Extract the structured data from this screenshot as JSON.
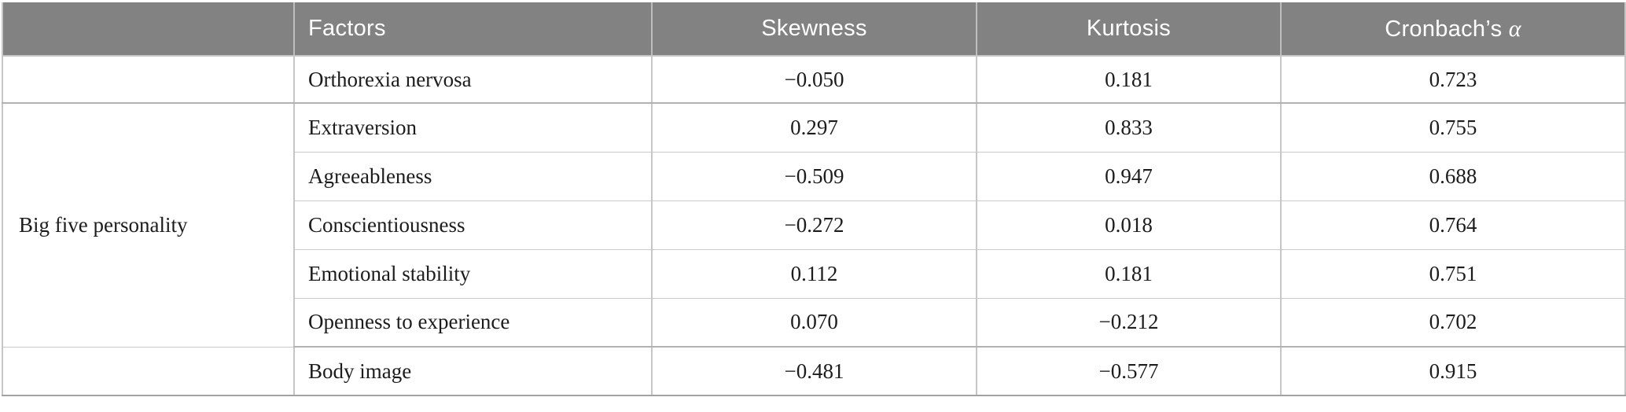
{
  "colors": {
    "header_bg": "#828282",
    "header_text": "#ffffff",
    "body_text": "#1c1c1c",
    "border_v": "#c6c6c6",
    "border_inner": "#cbcbcb",
    "border_group": "#b2b2b2",
    "border_bottom": "#a2a2a2",
    "page_bg": "#ffffff"
  },
  "table": {
    "header": {
      "group": "",
      "factors": "Factors",
      "skewness": "Skewness",
      "kurtosis": "Kurtosis",
      "cronbach_prefix": "Cronbach’s ",
      "cronbach_alpha": "α"
    },
    "group_label": "Big five personality",
    "rows": [
      {
        "factor": "Orthorexia nervosa",
        "skewness": "−0.050",
        "kurtosis": "0.181",
        "cronbach": "0.723"
      },
      {
        "factor": "Extraversion",
        "skewness": "0.297",
        "kurtosis": "0.833",
        "cronbach": "0.755"
      },
      {
        "factor": "Agreeableness",
        "skewness": "−0.509",
        "kurtosis": "0.947",
        "cronbach": "0.688"
      },
      {
        "factor": "Conscientiousness",
        "skewness": "−0.272",
        "kurtosis": "0.018",
        "cronbach": "0.764"
      },
      {
        "factor": "Emotional stability",
        "skewness": "0.112",
        "kurtosis": "0.181",
        "cronbach": "0.751"
      },
      {
        "factor": "Openness to experience",
        "skewness": "0.070",
        "kurtosis": "−0.212",
        "cronbach": "0.702"
      },
      {
        "factor": "Body image",
        "skewness": "−0.481",
        "kurtosis": "−0.577",
        "cronbach": "0.915"
      }
    ]
  }
}
